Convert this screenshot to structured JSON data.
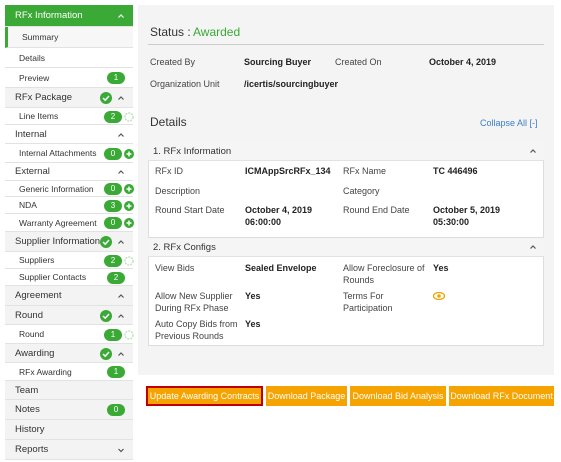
{
  "sidebar": {
    "items": [
      {
        "label": "RFx Information"
      },
      {
        "label": "Summary"
      },
      {
        "label": "Details"
      },
      {
        "label": "Preview",
        "badge": 1
      },
      {
        "label": "RFx Package"
      },
      {
        "label": "Line Items",
        "badge": 2
      },
      {
        "label": "Internal"
      },
      {
        "label": "Internal Attachments",
        "badge": 0
      },
      {
        "label": "External"
      },
      {
        "label": "Generic Information",
        "badge": 0
      },
      {
        "label": "NDA",
        "badge": 3
      },
      {
        "label": "Warranty Agreement",
        "badge": 0
      },
      {
        "label": "Supplier Information"
      },
      {
        "label": "Suppliers",
        "badge": 2
      },
      {
        "label": "Supplier Contacts",
        "badge": 2
      },
      {
        "label": "Agreement"
      },
      {
        "label": "Round"
      },
      {
        "label": "Round",
        "badge": 1
      },
      {
        "label": "Awarding"
      },
      {
        "label": "RFx Awarding",
        "badge": 1
      },
      {
        "label": "Team"
      },
      {
        "label": "Notes",
        "badge": 0
      },
      {
        "label": "History"
      },
      {
        "label": "Reports"
      }
    ]
  },
  "status": {
    "label": "Status :",
    "value": "Awarded"
  },
  "summary": [
    {
      "label": "Created By",
      "value": "Sourcing Buyer"
    },
    {
      "label": "Created On",
      "value": "October 4, 2019"
    },
    {
      "label": "Organization Unit",
      "value": "/icertis/sourcingbuyer"
    }
  ],
  "details": {
    "title": "Details",
    "collapse": "Collapse All [-]",
    "sections": [
      {
        "title": "1. RFx Information",
        "fields": [
          {
            "label": "RFx ID",
            "value": [
              "ICMAppSrcRFx_134"
            ]
          },
          {
            "label": "RFx Name",
            "value": [
              "TC 446496"
            ]
          },
          {
            "label": "Description"
          },
          {
            "label": "Category"
          },
          {
            "label": "Round Start Date",
            "value": [
              "October 4, 2019",
              "06:00:00"
            ]
          },
          {
            "label": "Round End Date",
            "value": [
              "October 5, 2019",
              "05:30:00"
            ]
          }
        ]
      },
      {
        "title": "2. RFx Configs",
        "fields": [
          {
            "label": "View Bids",
            "value": [
              "Sealed Envelope"
            ]
          },
          {
            "label": "Allow Foreclosure of Rounds",
            "value": [
              "Yes"
            ]
          },
          {
            "label": "Allow New Supplier During RFx Phase",
            "value": [
              "Yes"
            ]
          },
          {
            "label": "Terms For Participation"
          },
          {
            "label": "Auto Copy Bids from Previous Rounds",
            "value": [
              "Yes"
            ]
          }
        ]
      }
    ]
  },
  "buttons": [
    "Update Awarding Contracts",
    "Download Package",
    "Download Bid Analysis",
    "Download RFx Document"
  ]
}
